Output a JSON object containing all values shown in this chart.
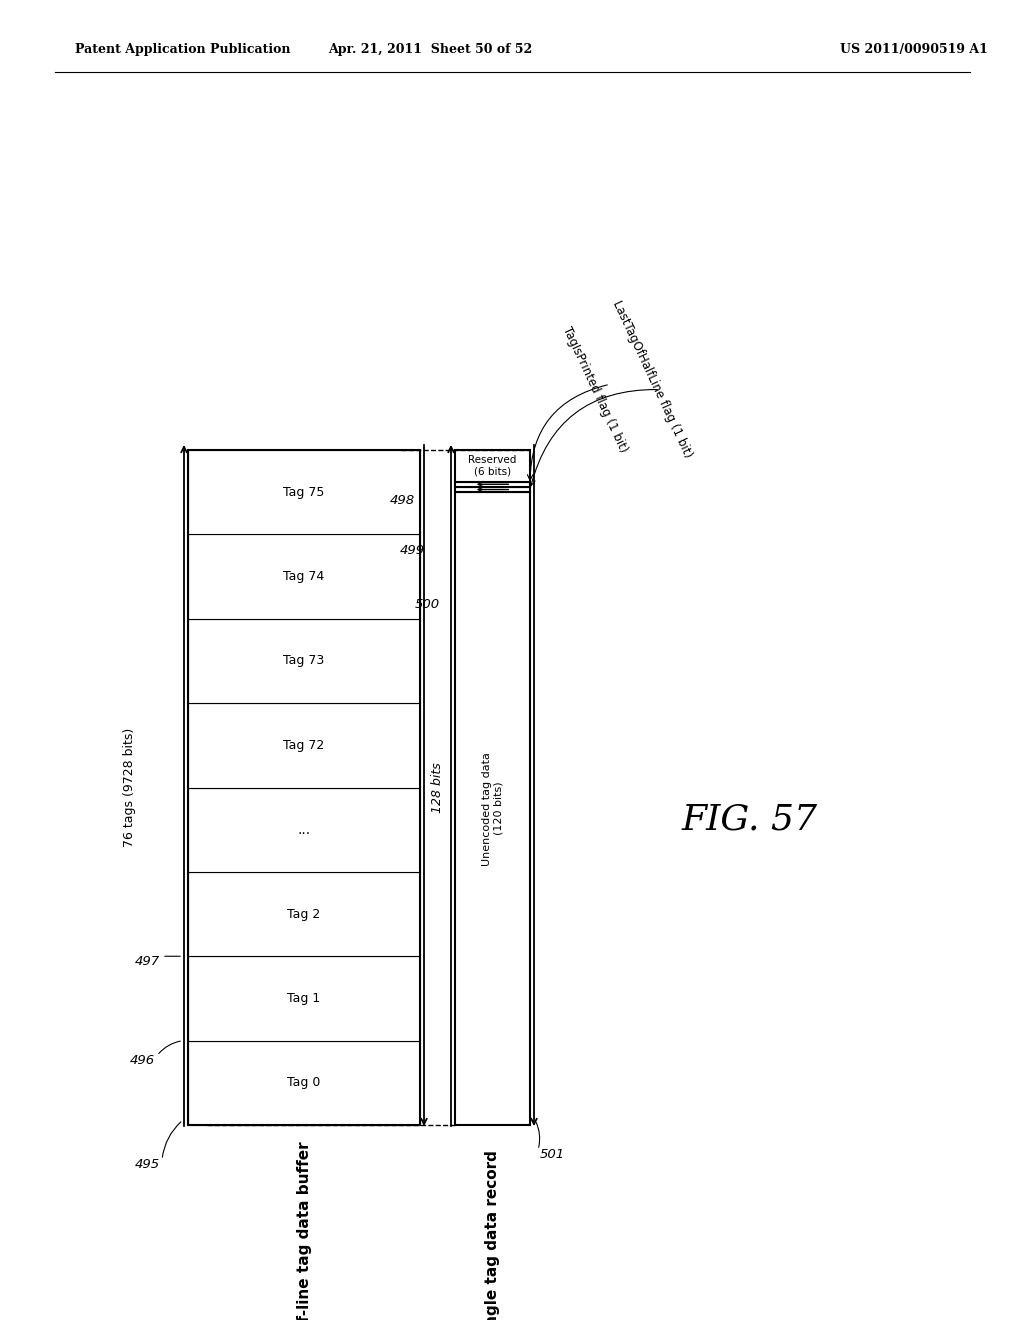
{
  "header_left": "Patent Application Publication",
  "header_center": "Apr. 21, 2011  Sheet 50 of 52",
  "header_right": "US 2011/0090519 A1",
  "fig_label": "FIG. 57",
  "buffer_label": "half-line tag data buffer",
  "record_label": "single tag data record",
  "buffer_annotation": "76 tags (9728 bits)",
  "bits_label": "128 bits",
  "tags": [
    "Tag 0",
    "Tag 1",
    "Tag 2",
    "...",
    "Tag 72",
    "Tag 73",
    "Tag 74",
    "Tag 75"
  ],
  "ref_495": "495",
  "ref_496": "496",
  "ref_497": "497",
  "ref_498": "498",
  "ref_499": "499",
  "ref_500": "500",
  "ref_501": "501",
  "flag1_text": "TagIsPrinted flag (1 bit)",
  "flag2_text": "LastTagOfHalfLine flag (1 bit)",
  "reserved_text": "Reserved\n(6 bits)",
  "unencoded_text": "Unencoded tag data\n(120 bits)"
}
